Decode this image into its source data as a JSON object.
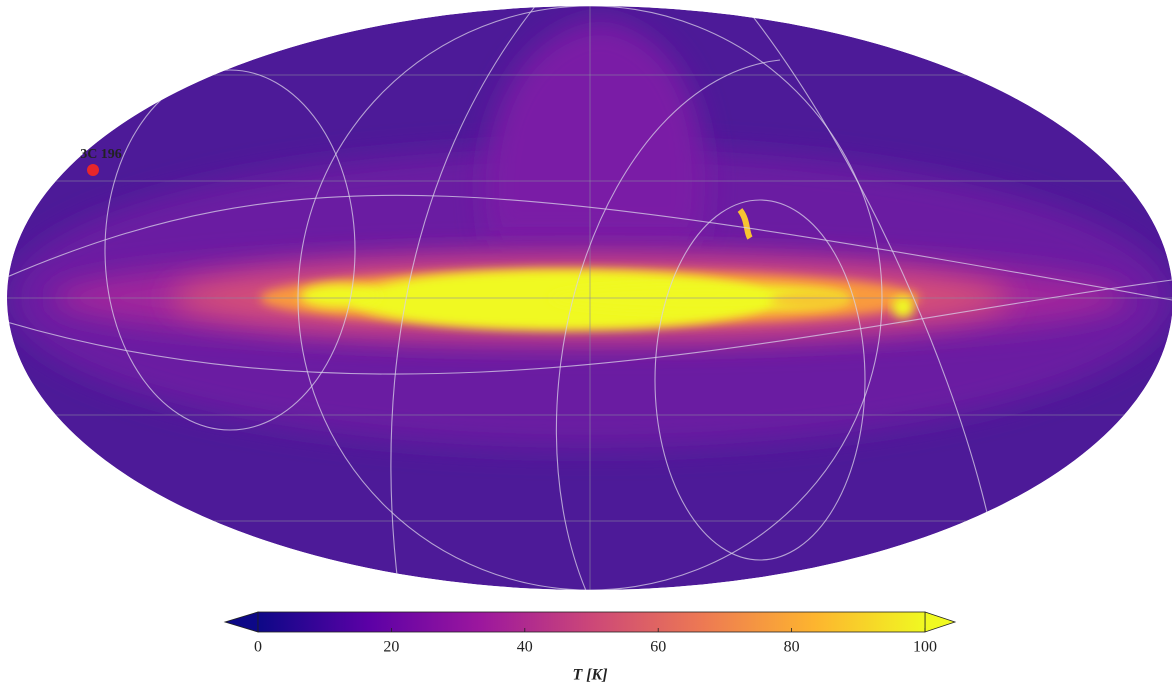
{
  "map": {
    "projection": "mollweide",
    "source": {
      "label": "3C 196",
      "color": "#e8262b"
    }
  },
  "colorbar": {
    "label": "T [K]",
    "lim": [
      0,
      100
    ],
    "ticks": [
      0,
      20,
      40,
      60,
      80,
      100
    ],
    "colors": [
      "#0d0887",
      "#5c01a6",
      "#9c179e",
      "#cc4778",
      "#ed7953",
      "#fdb42f",
      "#f0f921"
    ],
    "extend": "both"
  }
}
